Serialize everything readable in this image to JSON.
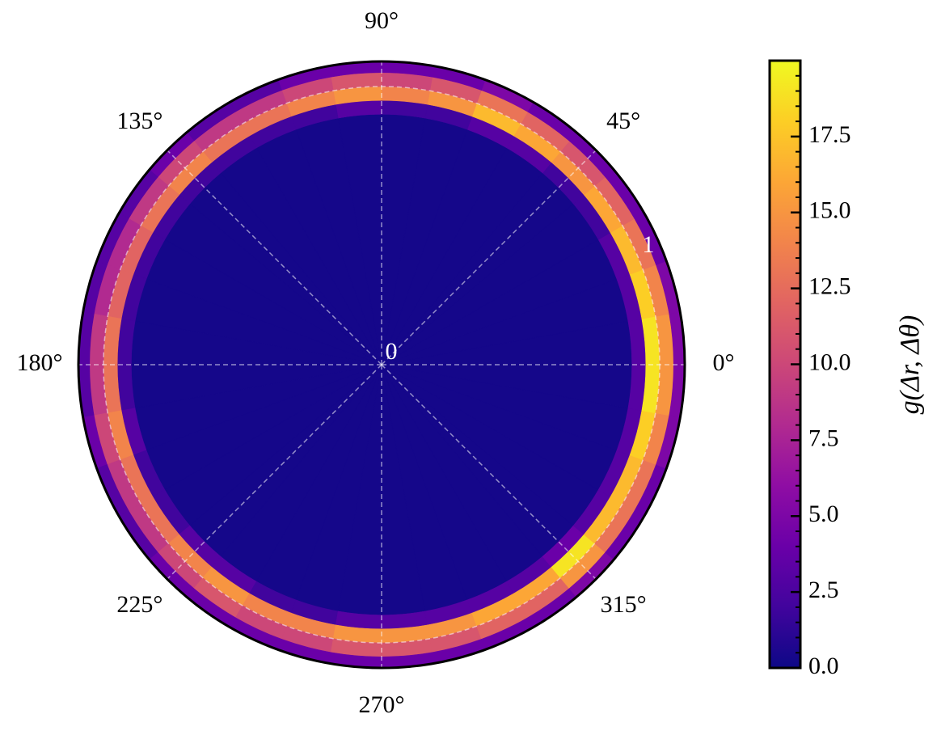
{
  "chart_data": {
    "type": "polar-heatmap",
    "theta_edges": [
      0,
      10,
      20,
      30,
      40,
      50,
      60,
      70,
      80,
      90,
      100,
      110,
      120,
      130,
      140,
      150,
      160,
      170,
      180,
      190,
      200,
      210,
      220,
      230,
      240,
      250,
      260,
      270,
      280,
      290,
      300,
      310,
      320,
      330,
      340,
      350,
      360
    ],
    "r_edges": [
      0,
      0.9,
      0.95,
      1.0,
      1.05,
      1.09
    ],
    "values": [
      [
        0.3,
        0.3,
        0.3,
        0.3,
        0.3,
        0.3,
        0.3,
        0.3,
        0.3,
        0.3,
        0.3,
        0.3,
        0.3,
        0.3,
        0.3,
        0.3,
        0.3,
        0.3,
        0.3,
        0.3,
        0.3,
        0.3,
        0.3,
        0.3,
        0.3,
        0.3,
        0.3,
        0.3,
        0.3,
        0.3,
        0.3,
        0.3,
        0.3,
        0.3,
        0.3,
        0.3
      ],
      [
        3,
        3,
        3,
        2,
        2,
        3,
        3,
        2,
        2,
        3,
        2,
        2,
        2,
        2,
        2,
        2,
        2,
        2,
        2,
        3,
        2,
        2,
        3,
        3,
        2,
        2,
        3,
        3,
        3,
        3,
        3,
        4,
        3,
        3,
        3,
        3
      ],
      [
        19,
        18,
        17,
        16,
        15,
        16,
        17,
        15,
        14,
        15,
        14,
        13,
        13,
        14,
        13,
        12,
        12,
        13,
        13,
        14,
        13,
        13,
        14,
        15,
        14,
        14,
        15,
        15,
        15,
        16,
        16,
        19,
        17,
        17,
        18,
        19
      ],
      [
        15,
        14,
        13,
        12,
        11,
        12,
        13,
        11,
        10,
        11,
        10,
        9,
        9,
        10,
        9,
        8,
        8,
        9,
        9,
        10,
        9,
        9,
        10,
        11,
        10,
        10,
        11,
        11,
        11,
        12,
        12,
        15,
        13,
        13,
        14,
        15
      ],
      [
        5,
        5,
        4,
        4,
        4,
        4,
        5,
        4,
        4,
        4,
        4,
        3,
        3,
        4,
        3,
        3,
        3,
        3,
        3,
        4,
        3,
        3,
        4,
        4,
        4,
        4,
        4,
        4,
        4,
        4,
        4,
        5,
        4,
        4,
        5,
        5
      ]
    ],
    "rlim": [
      0,
      1.09
    ],
    "rticks": [
      0,
      1
    ],
    "thetaticks": [
      {
        "value": 0,
        "label": "0°"
      },
      {
        "value": 45,
        "label": "45°"
      },
      {
        "value": 90,
        "label": "90°"
      },
      {
        "value": 135,
        "label": "135°"
      },
      {
        "value": 180,
        "label": "180°"
      },
      {
        "value": 225,
        "label": "225°"
      },
      {
        "value": 270,
        "label": "270°"
      },
      {
        "value": 315,
        "label": "315°"
      }
    ],
    "colormap": "plasma",
    "clim": [
      0,
      20
    ],
    "cticks": [
      {
        "value": 0,
        "label": "0.0"
      },
      {
        "value": 2.5,
        "label": "2.5"
      },
      {
        "value": 5,
        "label": "5.0"
      },
      {
        "value": 7.5,
        "label": "7.5"
      },
      {
        "value": 10,
        "label": "10.0"
      },
      {
        "value": 12.5,
        "label": "12.5"
      },
      {
        "value": 15,
        "label": "15.0"
      },
      {
        "value": 17.5,
        "label": "17.5"
      }
    ],
    "colorbar_label": "g(Δr, Δθ)",
    "grid": true
  }
}
